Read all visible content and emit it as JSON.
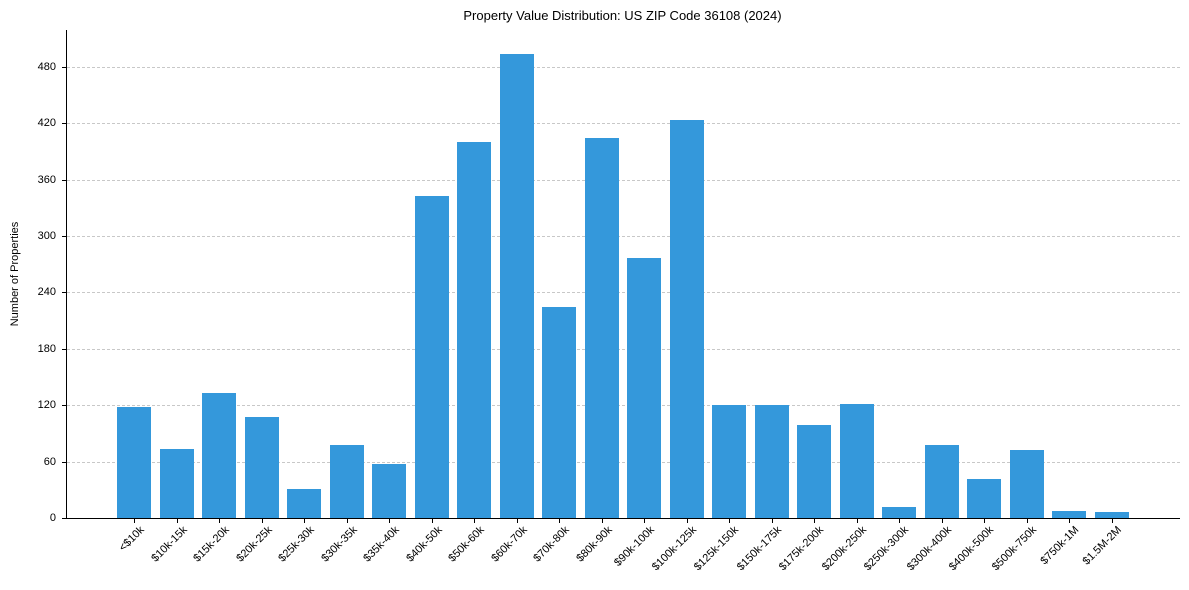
{
  "chart_data": {
    "type": "bar",
    "title": "Property Value Distribution: US ZIP Code 36108 (2024)",
    "xlabel": "",
    "ylabel": "Number of Properties",
    "categories": [
      "<$10k",
      "$10k-15k",
      "$15k-20k",
      "$20k-25k",
      "$25k-30k",
      "$30k-35k",
      "$35k-40k",
      "$40k-50k",
      "$50k-60k",
      "$60k-70k",
      "$70k-80k",
      "$80k-90k",
      "$90k-100k",
      "$100k-125k",
      "$125k-150k",
      "$150k-175k",
      "$175k-200k",
      "$200k-250k",
      "$250k-300k",
      "$300k-400k",
      "$400k-500k",
      "$500k-750k",
      "$750k-1M",
      "$1.5M-2M"
    ],
    "values": [
      118,
      73,
      133,
      107,
      31,
      78,
      57,
      343,
      400,
      494,
      224,
      404,
      277,
      423,
      120,
      120,
      99,
      121,
      12,
      78,
      41,
      72,
      7,
      6
    ],
    "yticks": [
      0,
      60,
      120,
      180,
      240,
      300,
      360,
      420,
      480
    ],
    "ylim": [
      0,
      519
    ],
    "grid": {
      "axis": "y",
      "style": "dashed",
      "color": "#c8c8c8"
    },
    "bar_color": "#3498db",
    "legend": null
  }
}
